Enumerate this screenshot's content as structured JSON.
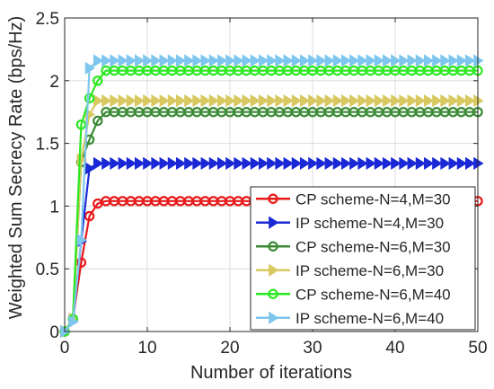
{
  "chart_data": {
    "type": "line",
    "title": "",
    "xlabel": "Number of iterations",
    "ylabel": "Weighted Sum Secrecy Rate (bps/Hz)",
    "xlim": [
      0,
      50
    ],
    "ylim": [
      0,
      2.5
    ],
    "xticks": [
      0,
      10,
      20,
      30,
      40,
      50
    ],
    "yticks": [
      0,
      0.5,
      1,
      1.5,
      2,
      2.5
    ],
    "xtick_labels": [
      "0",
      "10",
      "20",
      "30",
      "40",
      "50"
    ],
    "ytick_labels": [
      "0",
      "0.5",
      "1",
      "1.5",
      "2",
      "2.5"
    ],
    "grid": true,
    "legend_position": "bottom-right",
    "iterations": 50,
    "series": [
      {
        "name": "CP scheme-N=4,M=30",
        "color": "#e8191b",
        "marker": "circle",
        "start": [
          0,
          0.1,
          0.55,
          0.92,
          1.02
        ],
        "steady": 1.04
      },
      {
        "name": "IP scheme-N=4,M=30",
        "color": "#1a29d6",
        "marker": "triangle-right",
        "start": [
          0,
          0.08,
          0.72,
          1.3
        ],
        "steady": 1.34
      },
      {
        "name": "CP scheme-N=6,M=30",
        "color": "#3a8a35",
        "marker": "circle",
        "start": [
          0,
          0.1,
          1.35,
          1.53,
          1.68
        ],
        "steady": 1.75
      },
      {
        "name": "IP scheme-N=6,M=30",
        "color": "#d8c860",
        "marker": "triangle-right",
        "start": [
          0,
          0.1,
          1.37,
          1.73
        ],
        "steady": 1.84
      },
      {
        "name": "CP scheme-N=6,M=40",
        "color": "#2ae820",
        "marker": "circle",
        "start": [
          0,
          0.1,
          1.65,
          1.86,
          2.0
        ],
        "steady": 2.08
      },
      {
        "name": "IP scheme-N=6,M=40",
        "color": "#7fc6ee",
        "marker": "triangle-right",
        "start": [
          0,
          0.08,
          0.73,
          2.1
        ],
        "steady": 2.16
      }
    ]
  }
}
